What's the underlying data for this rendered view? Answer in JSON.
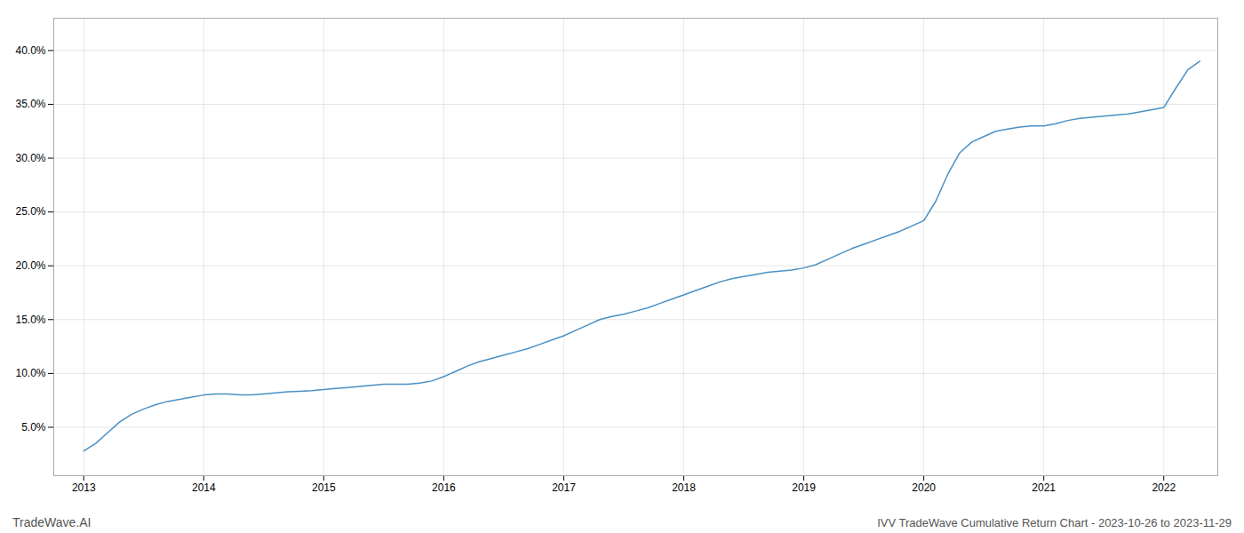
{
  "chart_data": {
    "type": "line",
    "title": "IVV TradeWave Cumulative Return Chart - 2023-10-26 to 2023-11-29",
    "annotations": [
      "TradeWave.AI"
    ],
    "color": "#4a90c4",
    "grid": true,
    "x": [
      2013.0,
      2013.1,
      2013.2,
      2013.3,
      2013.4,
      2013.5,
      2013.6,
      2013.7,
      2013.8,
      2013.9,
      2014.0,
      2014.1,
      2014.2,
      2014.3,
      2014.4,
      2014.5,
      2014.6,
      2014.7,
      2014.8,
      2014.9,
      2015.0,
      2015.1,
      2015.2,
      2015.3,
      2015.4,
      2015.5,
      2015.6,
      2015.7,
      2015.8,
      2015.9,
      2016.0,
      2016.1,
      2016.2,
      2016.3,
      2016.4,
      2016.5,
      2016.6,
      2016.7,
      2016.8,
      2016.9,
      2017.0,
      2017.1,
      2017.2,
      2017.3,
      2017.4,
      2017.5,
      2017.6,
      2017.7,
      2017.8,
      2017.9,
      2018.0,
      2018.1,
      2018.2,
      2018.3,
      2018.4,
      2018.5,
      2018.6,
      2018.7,
      2018.8,
      2018.9,
      2019.0,
      2019.1,
      2019.2,
      2019.3,
      2019.4,
      2019.5,
      2019.6,
      2019.7,
      2019.8,
      2019.9,
      2020.0,
      2020.1,
      2020.2,
      2020.3,
      2020.4,
      2020.5,
      2020.6,
      2020.7,
      2020.8,
      2020.9,
      2021.0,
      2021.1,
      2021.2,
      2021.3,
      2021.4,
      2021.5,
      2021.6,
      2021.7,
      2021.8,
      2021.9,
      2022.0,
      2022.1,
      2022.2,
      2022.3
    ],
    "values": [
      2.8,
      3.5,
      4.5,
      5.5,
      6.2,
      6.7,
      7.1,
      7.4,
      7.6,
      7.8,
      8.0,
      8.1,
      8.1,
      8.0,
      8.0,
      8.1,
      8.2,
      8.3,
      8.35,
      8.4,
      8.5,
      8.6,
      8.7,
      8.8,
      8.9,
      9.0,
      9.0,
      9.0,
      9.1,
      9.3,
      9.7,
      10.2,
      10.7,
      11.1,
      11.4,
      11.7,
      12.0,
      12.3,
      12.7,
      13.1,
      13.5,
      14.0,
      14.5,
      15.0,
      15.3,
      15.5,
      15.8,
      16.1,
      16.5,
      16.9,
      17.3,
      17.7,
      18.1,
      18.5,
      18.8,
      19.0,
      19.2,
      19.4,
      19.5,
      19.6,
      19.8,
      20.1,
      20.6,
      21.1,
      21.6,
      22.0,
      22.4,
      22.8,
      23.2,
      23.7,
      24.2,
      26.0,
      28.5,
      30.5,
      31.5,
      32.0,
      32.5,
      32.7,
      32.9,
      33.0,
      33.0,
      33.2,
      33.5,
      33.7,
      33.8,
      33.9,
      34.0,
      34.1,
      34.3,
      34.5,
      34.7,
      36.5,
      38.2,
      39.0
    ],
    "xlim": [
      2012.75,
      2022.45
    ],
    "ylim": [
      0.5,
      43
    ],
    "xticks": [
      2013,
      2014,
      2015,
      2016,
      2017,
      2018,
      2019,
      2020,
      2021,
      2022
    ],
    "yticks": [
      {
        "value": 5.0,
        "label": "5.0%"
      },
      {
        "value": 10.0,
        "label": "10.0%"
      },
      {
        "value": 15.0,
        "label": "15.0%"
      },
      {
        "value": 20.0,
        "label": "20.0%"
      },
      {
        "value": 25.0,
        "label": "25.0%"
      },
      {
        "value": 30.0,
        "label": "30.0%"
      },
      {
        "value": 35.0,
        "label": "35.0%"
      },
      {
        "value": 40.0,
        "label": "40.0%"
      }
    ]
  }
}
